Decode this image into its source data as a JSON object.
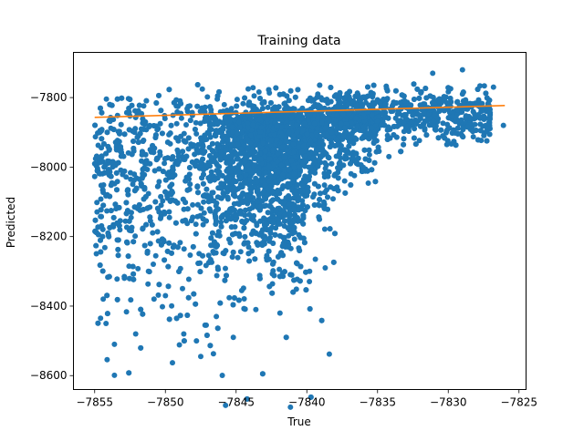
{
  "chart_data": {
    "type": "scatter",
    "title": "Training data",
    "xlabel": "True",
    "ylabel": "Predicted",
    "xlim": [
      -7856.5,
      -7824.5
    ],
    "ylim": [
      -8640,
      -7670
    ],
    "xticks": [
      -7855,
      -7850,
      -7845,
      -7840,
      -7835,
      -7830,
      -7825
    ],
    "yticks": [
      -8600,
      -8400,
      -8200,
      -8000,
      -7800
    ],
    "grid": false,
    "legend": "none",
    "colors": {
      "scatter": "#1f77b4",
      "fit": "#ff7f0e"
    },
    "series": [
      {
        "type": "scatter",
        "points": [
          [
            -7853.6,
            -8599
          ],
          [
            -7849.5,
            -8563
          ],
          [
            -7847.5,
            -8545
          ],
          [
            -7846.6,
            -8537
          ],
          [
            -7854.2,
            -8450
          ],
          [
            -7853.6,
            -8510
          ],
          [
            -7852.1,
            -8480
          ],
          [
            -7850.8,
            -8380
          ],
          [
            -7850.0,
            -8370
          ],
          [
            -7848.7,
            -8480
          ],
          [
            -7847.8,
            -8500
          ],
          [
            -7847.2,
            -8455
          ],
          [
            -7846.4,
            -8430
          ],
          [
            -7845.2,
            -8490
          ],
          [
            -7843.6,
            -8410
          ],
          [
            -7841.9,
            -8420
          ],
          [
            -7854.4,
            -8380
          ],
          [
            -7852.9,
            -8320
          ],
          [
            -7851.2,
            -8300
          ],
          [
            -7839.4,
            -8265
          ],
          [
            -7838.7,
            -8290
          ],
          [
            -7839.8,
            -8300
          ],
          [
            -7830.1,
            -7935
          ],
          [
            -7827.1,
            -7830
          ],
          [
            -7829.0,
            -7720
          ],
          [
            -7831.1,
            -7730
          ],
          [
            -7826.1,
            -7880
          ],
          [
            -7826.8,
            -7770
          ],
          [
            -7855.0,
            -7990
          ],
          [
            -7854.0,
            -8200
          ],
          [
            -7836.5,
            -7920
          ],
          [
            -7834.2,
            -7970
          ]
        ]
      },
      {
        "type": "line",
        "name": "",
        "x": [
          -7855.0,
          -7826.0
        ],
        "y": [
          -7857,
          -7823
        ]
      }
    ]
  }
}
